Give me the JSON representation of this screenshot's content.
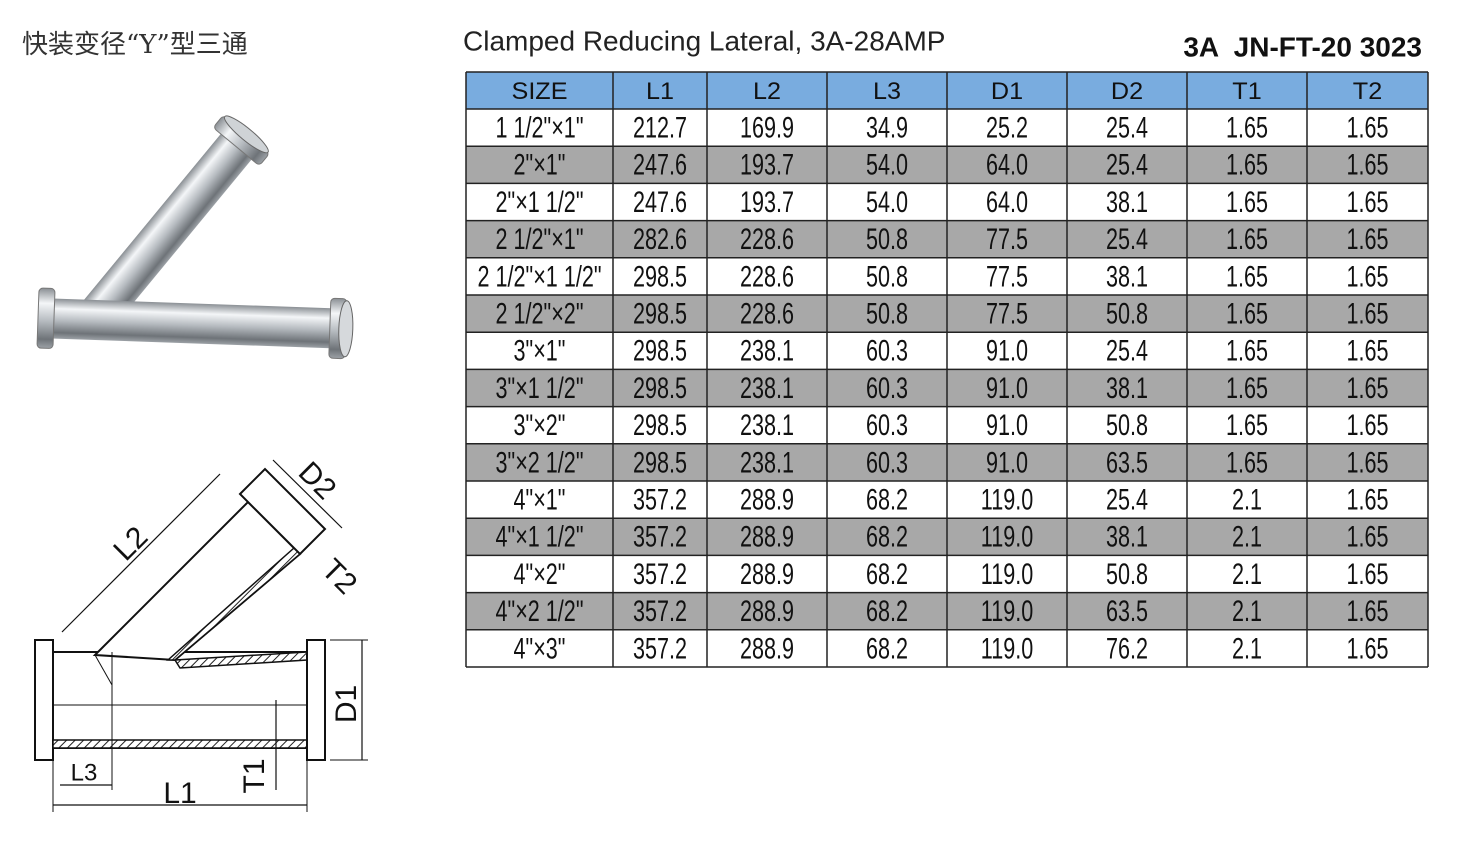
{
  "header": {
    "title_cn": "快装变径“Y”型三通",
    "title": "Clamped Reducing Lateral, 3A-28AMP",
    "code": "3A  JN-FT-20 3023"
  },
  "table": {
    "columns": [
      "SIZE",
      "L1",
      "L2",
      "L3",
      "D1",
      "D2",
      "T1",
      "T2"
    ],
    "rows": [
      [
        "1 1/2\"×1\"",
        "212.7",
        "169.9",
        "34.9",
        "25.2",
        "25.4",
        "1.65",
        "1.65"
      ],
      [
        "2\"×1\"",
        "247.6",
        "193.7",
        "54.0",
        "64.0",
        "25.4",
        "1.65",
        "1.65"
      ],
      [
        "2\"×1 1/2\"",
        "247.6",
        "193.7",
        "54.0",
        "64.0",
        "38.1",
        "1.65",
        "1.65"
      ],
      [
        "2 1/2\"×1\"",
        "282.6",
        "228.6",
        "50.8",
        "77.5",
        "25.4",
        "1.65",
        "1.65"
      ],
      [
        "2 1/2\"×1 1/2\"",
        "298.5",
        "228.6",
        "50.8",
        "77.5",
        "38.1",
        "1.65",
        "1.65"
      ],
      [
        "2 1/2\"×2\"",
        "298.5",
        "228.6",
        "50.8",
        "77.5",
        "50.8",
        "1.65",
        "1.65"
      ],
      [
        "3\"×1\"",
        "298.5",
        "238.1",
        "60.3",
        "91.0",
        "25.4",
        "1.65",
        "1.65"
      ],
      [
        "3\"×1 1/2\"",
        "298.5",
        "238.1",
        "60.3",
        "91.0",
        "38.1",
        "1.65",
        "1.65"
      ],
      [
        "3\"×2\"",
        "298.5",
        "238.1",
        "60.3",
        "91.0",
        "50.8",
        "1.65",
        "1.65"
      ],
      [
        "3\"×2 1/2\"",
        "298.5",
        "238.1",
        "60.3",
        "91.0",
        "63.5",
        "1.65",
        "1.65"
      ],
      [
        "4\"×1\"",
        "357.2",
        "288.9",
        "68.2",
        "119.0",
        "25.4",
        "2.1",
        "1.65"
      ],
      [
        "4\"×1 1/2\"",
        "357.2",
        "288.9",
        "68.2",
        "119.0",
        "38.1",
        "2.1",
        "1.65"
      ],
      [
        "4\"×2\"",
        "357.2",
        "288.9",
        "68.2",
        "119.0",
        "50.8",
        "2.1",
        "1.65"
      ],
      [
        "4\"×2 1/2\"",
        "357.2",
        "288.9",
        "68.2",
        "119.0",
        "63.5",
        "2.1",
        "1.65"
      ],
      [
        "4\"×3\"",
        "357.2",
        "288.9",
        "68.2",
        "119.0",
        "76.2",
        "2.1",
        "1.65"
      ]
    ]
  },
  "diagram": {
    "labels": {
      "L2": "L2",
      "D2": "D2",
      "T2": "T2",
      "D1": "D1",
      "L3": "L3",
      "L1": "L1",
      "T1": "T1"
    }
  }
}
